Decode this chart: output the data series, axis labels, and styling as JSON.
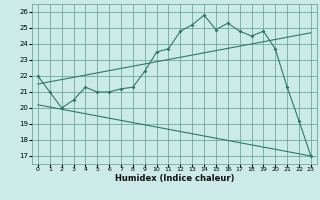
{
  "xlabel": "Humidex (Indice chaleur)",
  "bg_color": "#cceae7",
  "grid_color": "#5a9e8e",
  "line_color": "#2d7a6a",
  "xlim": [
    -0.5,
    23.5
  ],
  "ylim": [
    16.5,
    26.5
  ],
  "xticks": [
    0,
    1,
    2,
    3,
    4,
    5,
    6,
    7,
    8,
    9,
    10,
    11,
    12,
    13,
    14,
    15,
    16,
    17,
    18,
    19,
    20,
    21,
    22,
    23
  ],
  "yticks": [
    17,
    18,
    19,
    20,
    21,
    22,
    23,
    24,
    25,
    26
  ],
  "series1_x": [
    0,
    1,
    2,
    3,
    4,
    5,
    6,
    7,
    8,
    9,
    10,
    11,
    12,
    13,
    14,
    15,
    16,
    17,
    18,
    19,
    20,
    21,
    22,
    23
  ],
  "series1_y": [
    22.0,
    21.0,
    20.0,
    20.5,
    21.3,
    21.0,
    21.0,
    21.2,
    21.3,
    22.3,
    23.5,
    23.7,
    24.8,
    25.2,
    25.8,
    24.9,
    25.3,
    24.8,
    24.5,
    24.8,
    23.7,
    21.3,
    19.2,
    17.0
  ],
  "series2_x": [
    0,
    23
  ],
  "series2_y": [
    21.5,
    24.7
  ],
  "series3_x": [
    0,
    23
  ],
  "series3_y": [
    20.2,
    17.0
  ]
}
